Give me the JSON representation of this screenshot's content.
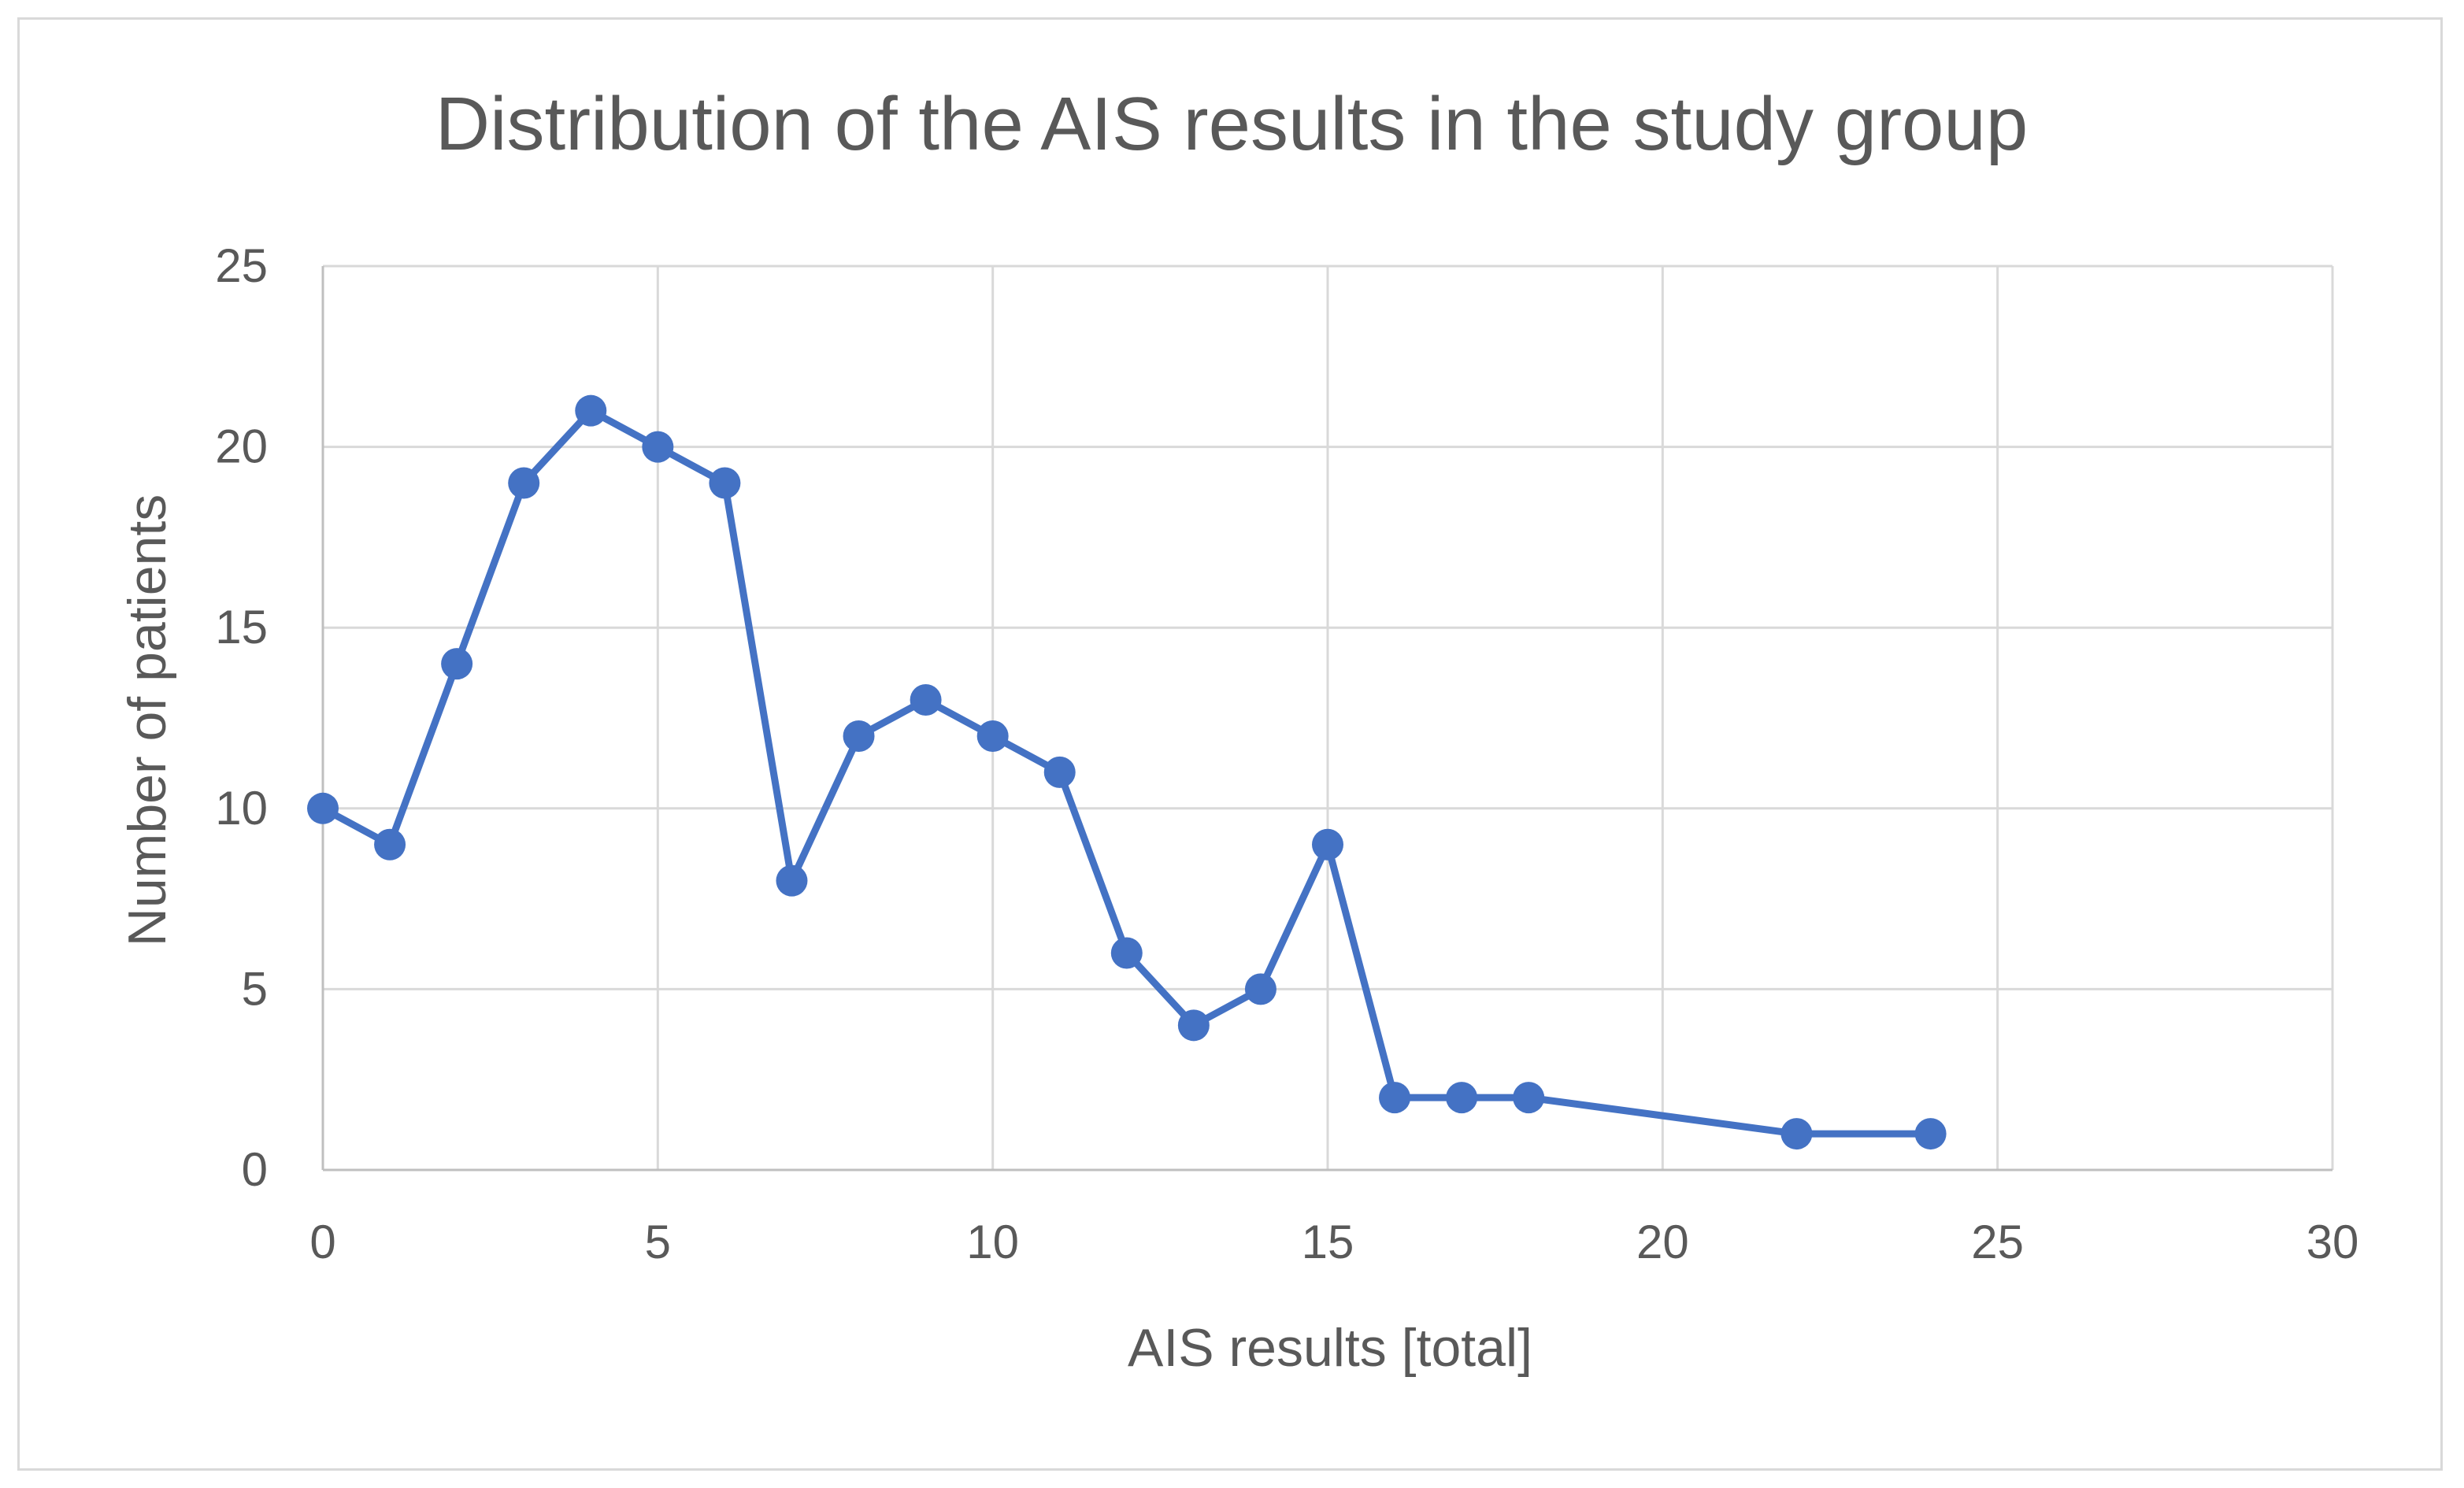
{
  "chart_data": {
    "type": "line",
    "title": "Distribution of the AIS results in the study group",
    "xlabel": "AIS results [total]",
    "ylabel": "Number of patients",
    "xlim": [
      0,
      30
    ],
    "ylim": [
      0,
      25
    ],
    "xticks": [
      0,
      5,
      10,
      15,
      20,
      25,
      30
    ],
    "yticks": [
      0,
      5,
      10,
      15,
      20,
      25
    ],
    "grid": true,
    "legend": "none",
    "series": [
      {
        "color": "#4472c4",
        "marker": "circle",
        "points": [
          {
            "x": 0,
            "y": 10
          },
          {
            "x": 1,
            "y": 9
          },
          {
            "x": 2,
            "y": 14
          },
          {
            "x": 3,
            "y": 19
          },
          {
            "x": 4,
            "y": 21
          },
          {
            "x": 5,
            "y": 20
          },
          {
            "x": 6,
            "y": 19
          },
          {
            "x": 7,
            "y": 8
          },
          {
            "x": 8,
            "y": 12
          },
          {
            "x": 9,
            "y": 13
          },
          {
            "x": 10,
            "y": 12
          },
          {
            "x": 11,
            "y": 11
          },
          {
            "x": 12,
            "y": 6
          },
          {
            "x": 13,
            "y": 4
          },
          {
            "x": 14,
            "y": 5
          },
          {
            "x": 15,
            "y": 9
          },
          {
            "x": 16,
            "y": 2
          },
          {
            "x": 17,
            "y": 2
          },
          {
            "x": 18,
            "y": 2
          },
          {
            "x": 22,
            "y": 1
          },
          {
            "x": 24,
            "y": 1
          }
        ]
      }
    ]
  }
}
